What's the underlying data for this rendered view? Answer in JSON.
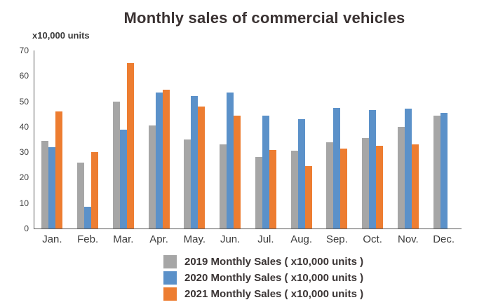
{
  "chart_data": {
    "type": "bar",
    "title": "Monthly sales of commercial vehicles",
    "ylabel": "x10,000 units",
    "xlabel": "",
    "categories": [
      "Jan.",
      "Feb.",
      "Mar.",
      "Apr.",
      "May.",
      "Jun.",
      "Jul.",
      "Aug.",
      "Sep.",
      "Oct.",
      "Nov.",
      "Dec."
    ],
    "series": [
      {
        "name": "2019 Monthly Sales ( x10,000 units )",
        "color": "#a6a6a6",
        "values": [
          34.5,
          26,
          50,
          40.5,
          35,
          33,
          28,
          30.5,
          34,
          35.5,
          40,
          44.5
        ]
      },
      {
        "name": "2020 Monthly Sales ( x10,000 units )",
        "color": "#5b91c9",
        "values": [
          32,
          8.5,
          39,
          53.5,
          52,
          53.5,
          44.5,
          43,
          47.5,
          46.5,
          47,
          45.5
        ]
      },
      {
        "name": "2021 Monthly Sales ( x10,000 units )",
        "color": "#ed7d31",
        "values": [
          46,
          30,
          65,
          54.5,
          48,
          44.5,
          31,
          24.5,
          31.5,
          32.5,
          33,
          null
        ]
      }
    ],
    "ylim": [
      0,
      70
    ],
    "yticks": [
      0,
      10,
      20,
      30,
      40,
      50,
      60,
      70
    ],
    "grid": false,
    "legend_position": "bottom",
    "axis_color": "#595959"
  }
}
